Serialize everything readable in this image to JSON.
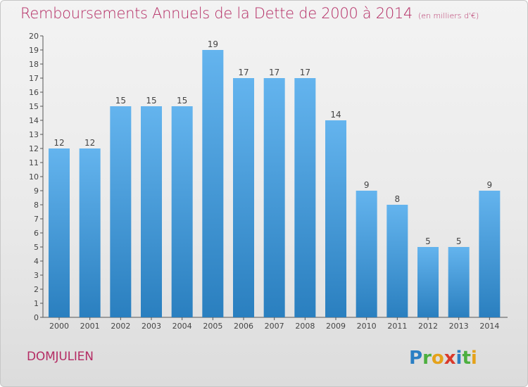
{
  "title": "Remboursements Annuels de la Dette de 2000 à 2014",
  "unit_note": "(en milliers d'€)",
  "town": "DOMJULIEN",
  "logo_text": "Proxiti",
  "colors": {
    "title": "#b42c64",
    "bar_top": "#64b4ee",
    "bar_bottom": "#2a7fbf",
    "axis": "#555555",
    "label": "#444444"
  },
  "chart_data": {
    "type": "bar",
    "title": "Remboursements Annuels de la Dette de 2000 à 2014",
    "xlabel": "",
    "ylabel": "",
    "categories": [
      "2000",
      "2001",
      "2002",
      "2003",
      "2004",
      "2005",
      "2006",
      "2007",
      "2008",
      "2009",
      "2010",
      "2011",
      "2012",
      "2013",
      "2014"
    ],
    "values": [
      12,
      12,
      15,
      15,
      15,
      19,
      17,
      17,
      17,
      14,
      9,
      8,
      5,
      5,
      9
    ],
    "ylim": [
      0,
      20
    ],
    "yticks": [
      0,
      1,
      2,
      3,
      4,
      5,
      6,
      7,
      8,
      9,
      10,
      11,
      12,
      13,
      14,
      15,
      16,
      17,
      18,
      19,
      20
    ],
    "grid": false,
    "data_labels": true,
    "legend": "none"
  }
}
